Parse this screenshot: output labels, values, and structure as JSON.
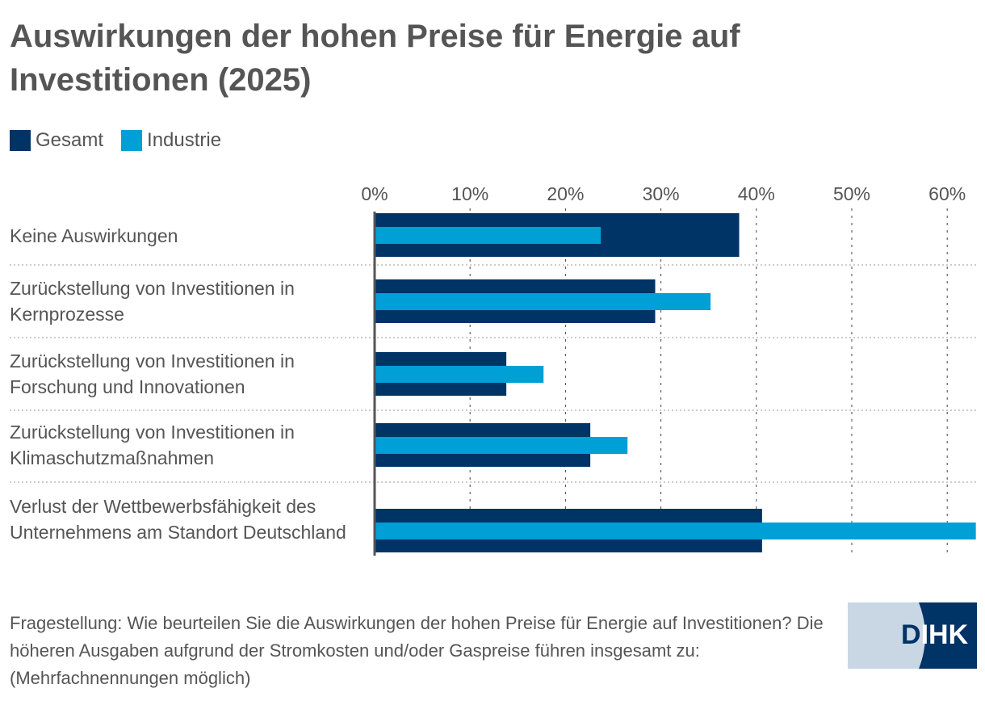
{
  "title": "Auswirkungen der hohen Preise für Energie auf Investitionen (2025)",
  "legend": [
    {
      "label": "Gesamt",
      "color": "#003366"
    },
    {
      "label": "Industrie",
      "color": "#009fd6"
    }
  ],
  "note": "Fragestellung: Wie beurteilen Sie die Auswirkungen der hohen Preise für Energie auf Investitionen? Die höheren Ausgaben aufgrund der Stromkosten und/oder Gaspreise führen insgesamt zu: (Mehrfachnennungen möglich)",
  "logo": "DIHK",
  "chart_data": {
    "type": "bar",
    "orientation": "horizontal",
    "categories": [
      "Keine Auswirkungen",
      "Zurückstellung von Investitionen in Kernprozesse",
      "Zurückstellung von Investitionen in Forschung und Innovationen",
      "Zurückstellung von Investitionen in Klimaschutzmaßnahmen",
      "Verlust der Wettbewerbsfähigkeit des Unternehmens am Standort Deutschland"
    ],
    "series": [
      {
        "name": "Gesamt",
        "color": "#003366",
        "values": [
          38.2,
          29.4,
          13.8,
          22.6,
          40.6
        ]
      },
      {
        "name": "Industrie",
        "color": "#009fd6",
        "values": [
          23.7,
          35.2,
          17.7,
          26.5,
          63.0
        ]
      }
    ],
    "xlim": [
      0,
      63
    ],
    "ticks": [
      "0%",
      "10%",
      "20%",
      "30%",
      "40%",
      "50%",
      "60%"
    ],
    "tick_values": [
      0,
      10,
      20,
      30,
      40,
      50,
      60
    ],
    "grid": true,
    "legend_position": "top-left"
  }
}
